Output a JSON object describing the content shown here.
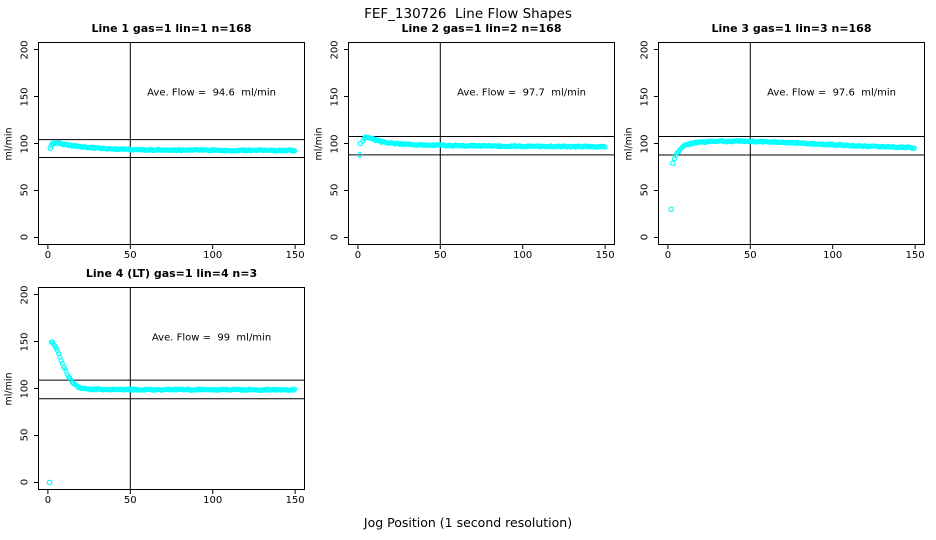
{
  "figure_title": "FEF_130726  Line Flow Shapes",
  "x_axis_label": "Jog Position (1 second resolution)",
  "colors": {
    "marker": "#00ffff",
    "line": "#000000",
    "background": "#ffffff"
  },
  "chart_data": [
    {
      "type": "scatter",
      "title": "Line 1 gas=1 lin=1 n=168",
      "ylabel": "ml/min",
      "ave_flow": 94.6,
      "ave_flow_label": "Ave. Flow =  94.6  ml/min",
      "xlim": [
        -6,
        156
      ],
      "ylim": [
        -8,
        208
      ],
      "xticks": [
        0,
        50,
        100,
        150
      ],
      "yticks": [
        0,
        50,
        100,
        150,
        200
      ],
      "vline_x": 50,
      "ref_lines": {
        "upper": 104.1,
        "lower": 85.1
      },
      "band_anchors": [
        [
          2,
          99
        ],
        [
          4,
          100.5
        ],
        [
          6,
          100.5
        ],
        [
          10,
          99
        ],
        [
          15,
          97.5
        ],
        [
          20,
          96.5
        ],
        [
          30,
          95
        ],
        [
          40,
          94
        ],
        [
          60,
          93.2
        ],
        [
          80,
          93
        ],
        [
          100,
          92.8
        ],
        [
          150,
          92.5
        ]
      ],
      "outliers": [
        [
          1.5,
          95
        ]
      ]
    },
    {
      "type": "scatter",
      "title": "Line 2 gas=1 lin=2 n=168",
      "ylabel": "ml/min",
      "ave_flow": 97.7,
      "ave_flow_label": "Ave. Flow =  97.7  ml/min",
      "xlim": [
        -6,
        156
      ],
      "ylim": [
        -8,
        208
      ],
      "xticks": [
        0,
        50,
        100,
        150
      ],
      "yticks": [
        0,
        50,
        100,
        150,
        200
      ],
      "vline_x": 50,
      "ref_lines": {
        "upper": 107.5,
        "lower": 87.9
      },
      "band_anchors": [
        [
          3,
          103
        ],
        [
          4,
          105.5
        ],
        [
          5,
          107
        ],
        [
          7,
          106
        ],
        [
          10,
          104
        ],
        [
          14,
          102
        ],
        [
          20,
          100.5
        ],
        [
          30,
          99
        ],
        [
          50,
          98
        ],
        [
          80,
          97.3
        ],
        [
          120,
          96.8
        ],
        [
          150,
          96.5
        ]
      ],
      "outliers": [
        [
          1.5,
          100
        ],
        [
          1,
          88
        ]
      ]
    },
    {
      "type": "scatter",
      "title": "Line 3 gas=1 lin=3 n=168",
      "ylabel": "ml/min",
      "ave_flow": 97.6,
      "ave_flow_label": "Ave. Flow =  97.6  ml/min",
      "xlim": [
        -6,
        156
      ],
      "ylim": [
        -8,
        208
      ],
      "xticks": [
        0,
        50,
        100,
        150
      ],
      "yticks": [
        0,
        50,
        100,
        150,
        200
      ],
      "vline_x": 50,
      "ref_lines": {
        "upper": 107.4,
        "lower": 87.8
      },
      "band_anchors": [
        [
          4,
          84
        ],
        [
          5,
          88
        ],
        [
          6,
          91
        ],
        [
          8,
          95
        ],
        [
          10,
          97.5
        ],
        [
          14,
          100
        ],
        [
          20,
          101.5
        ],
        [
          30,
          102.3
        ],
        [
          45,
          102.5
        ],
        [
          60,
          101.8
        ],
        [
          80,
          100.3
        ],
        [
          100,
          98.7
        ],
        [
          120,
          97.2
        ],
        [
          150,
          95.5
        ]
      ],
      "outliers": [
        [
          2,
          30
        ],
        [
          3,
          79
        ]
      ]
    },
    {
      "type": "scatter",
      "title": "Line 4 (LT) gas=1 lin=4 n=3",
      "ylabel": "ml/min",
      "ave_flow": 99,
      "ave_flow_label": "Ave. Flow =  99  ml/min",
      "xlim": [
        -6,
        156
      ],
      "ylim": [
        -8,
        208
      ],
      "xticks": [
        0,
        50,
        100,
        150
      ],
      "yticks": [
        0,
        50,
        100,
        150,
        200
      ],
      "vline_x": 50,
      "ref_lines": {
        "upper": 108.9,
        "lower": 89.1
      },
      "band_anchors": [
        [
          2,
          150
        ],
        [
          3,
          149
        ],
        [
          4,
          146.5
        ],
        [
          5,
          143
        ],
        [
          6,
          139
        ],
        [
          7,
          134.5
        ],
        [
          8,
          130
        ],
        [
          9,
          125.5
        ],
        [
          10,
          121.5
        ],
        [
          11,
          118
        ],
        [
          12,
          114.5
        ],
        [
          13,
          111.5
        ],
        [
          14,
          109
        ],
        [
          15,
          106.5
        ],
        [
          16,
          104.5
        ],
        [
          17,
          103
        ],
        [
          18,
          102
        ],
        [
          19,
          101.2
        ],
        [
          20,
          100.6
        ],
        [
          22,
          99.8
        ],
        [
          25,
          99.2
        ],
        [
          30,
          99
        ],
        [
          40,
          98.9
        ],
        [
          60,
          98.8
        ],
        [
          100,
          98.7
        ],
        [
          150,
          98.5
        ]
      ],
      "outliers": [
        [
          1,
          0
        ]
      ]
    }
  ]
}
